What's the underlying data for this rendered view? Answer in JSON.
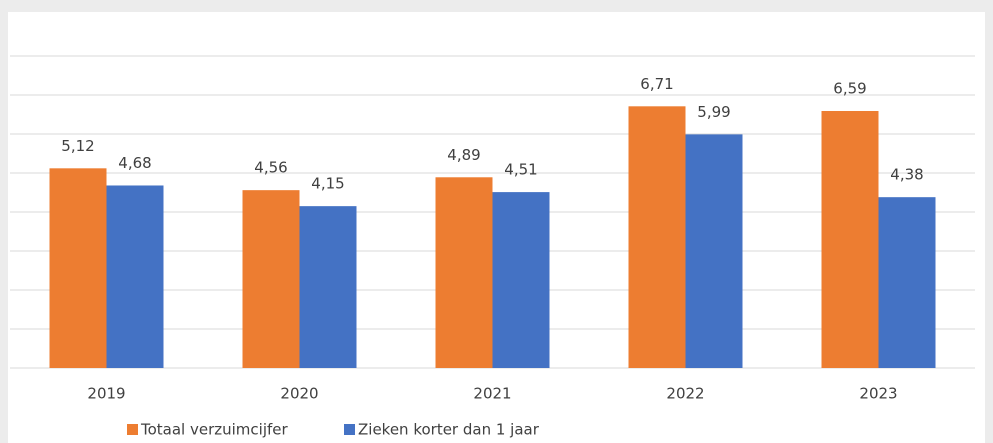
{
  "chart_data": {
    "type": "bar",
    "categories": [
      "2019",
      "2020",
      "2021",
      "2022",
      "2023"
    ],
    "series": [
      {
        "name": "Totaal verzuimcijfer",
        "color": "#ed7d31",
        "values": [
          5.12,
          4.56,
          4.89,
          6.71,
          6.59
        ],
        "value_labels": [
          "5,12",
          "4,56",
          "4,89",
          "6,71",
          "6,59"
        ]
      },
      {
        "name": "Zieken korter dan 1 jaar",
        "color": "#4472c4",
        "values": [
          4.68,
          4.15,
          4.51,
          5.99,
          4.38
        ],
        "value_labels": [
          "4,68",
          "4,15",
          "4,51",
          "5,99",
          "4,38"
        ]
      }
    ],
    "ylim": [
      0,
      8
    ],
    "yticks": [
      0,
      1,
      2,
      3,
      4,
      5,
      6,
      7,
      8
    ],
    "grid": true,
    "legend": "bottom"
  }
}
